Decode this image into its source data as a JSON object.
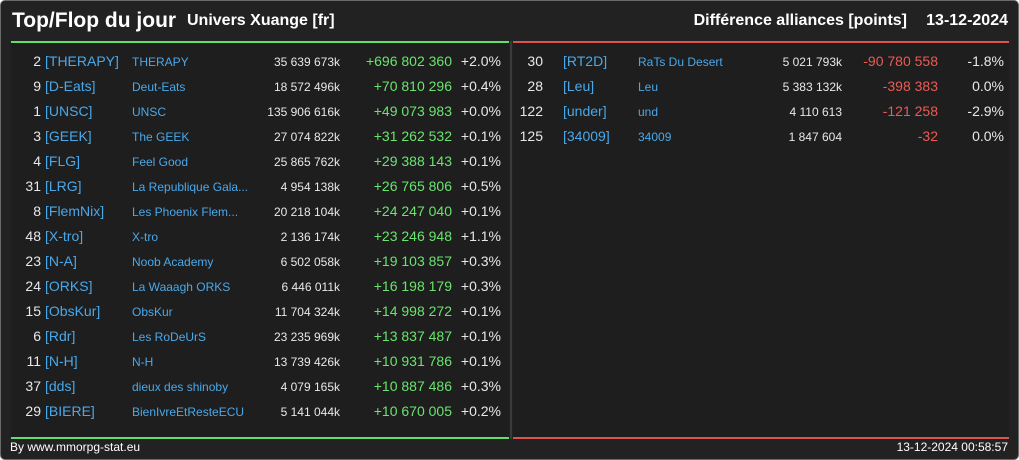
{
  "header": {
    "title": "Top/Flop du jour",
    "universe": "Univers Xuange [fr]",
    "metric": "Différence alliances [points]",
    "date": "13-12-2024"
  },
  "colors": {
    "top_accent": "#5fe06a",
    "flop_accent": "#e0504c",
    "tag_color": "#4aa8ea",
    "background": "#222222"
  },
  "top": [
    {
      "rank": "2",
      "tag": "[THERAPY]",
      "name": "THERAPY",
      "points": "35 639 673k",
      "diff": "+696 802 360",
      "pct": "+2.0%"
    },
    {
      "rank": "9",
      "tag": "[D-Eats]",
      "name": "Deut-Eats",
      "points": "18 572 496k",
      "diff": "+70 810 296",
      "pct": "+0.4%"
    },
    {
      "rank": "1",
      "tag": "[UNSC]",
      "name": "UNSC",
      "points": "135 906 616k",
      "diff": "+49 073 983",
      "pct": "+0.0%"
    },
    {
      "rank": "3",
      "tag": "[GEEK]",
      "name": "The GEEK",
      "points": "27 074 822k",
      "diff": "+31 262 532",
      "pct": "+0.1%"
    },
    {
      "rank": "4",
      "tag": "[FLG]",
      "name": "Feel Good",
      "points": "25 865 762k",
      "diff": "+29 388 143",
      "pct": "+0.1%"
    },
    {
      "rank": "31",
      "tag": "[LRG]",
      "name": "La Republique Gala...",
      "points": "4 954 138k",
      "diff": "+26 765 806",
      "pct": "+0.5%"
    },
    {
      "rank": "8",
      "tag": "[FlemNix]",
      "name": "Les Phoenix Flem...",
      "points": "20 218 104k",
      "diff": "+24 247 040",
      "pct": "+0.1%"
    },
    {
      "rank": "48",
      "tag": "[X-tro]",
      "name": "X-tro",
      "points": "2 136 174k",
      "diff": "+23 246 948",
      "pct": "+1.1%"
    },
    {
      "rank": "23",
      "tag": "[N-A]",
      "name": "Noob Academy",
      "points": "6 502 058k",
      "diff": "+19 103 857",
      "pct": "+0.3%"
    },
    {
      "rank": "24",
      "tag": "[ORKS]",
      "name": "La Waaagh ORKS",
      "points": "6 446 011k",
      "diff": "+16 198 179",
      "pct": "+0.3%"
    },
    {
      "rank": "15",
      "tag": "[ObsKur]",
      "name": "ObsKur",
      "points": "11 704 324k",
      "diff": "+14 998 272",
      "pct": "+0.1%"
    },
    {
      "rank": "6",
      "tag": "[Rdr]",
      "name": "Les RoDeUrS",
      "points": "23 235 969k",
      "diff": "+13 837 487",
      "pct": "+0.1%"
    },
    {
      "rank": "11",
      "tag": "[N-H]",
      "name": "N-H",
      "points": "13 739 426k",
      "diff": "+10 931 786",
      "pct": "+0.1%"
    },
    {
      "rank": "37",
      "tag": "[dds]",
      "name": "dieux des shinoby",
      "points": "4 079 165k",
      "diff": "+10 887 486",
      "pct": "+0.3%"
    },
    {
      "rank": "29",
      "tag": "[BIERE]",
      "name": "BienIvreEtResteECU",
      "points": "5 141 044k",
      "diff": "+10 670 005",
      "pct": "+0.2%"
    }
  ],
  "flop": [
    {
      "rank": "30",
      "tag": "[RT2D]",
      "name": "RaTs Du Desert",
      "points": "5 021 793k",
      "diff": "-90 780 558",
      "pct": "-1.8%"
    },
    {
      "rank": "28",
      "tag": "[Leu]",
      "name": "Leu",
      "points": "5 383 132k",
      "diff": "-398 383",
      "pct": "0.0%"
    },
    {
      "rank": "122",
      "tag": "[under]",
      "name": "und",
      "points": "4 110 613",
      "diff": "-121 258",
      "pct": "-2.9%"
    },
    {
      "rank": "125",
      "tag": "[34009]",
      "name": "34009",
      "points": "1 847 604",
      "diff": "-32",
      "pct": "0.0%"
    }
  ],
  "footer": {
    "source": "By www.mmorpg-stat.eu",
    "timestamp": "13-12-2024 00:58:57"
  }
}
